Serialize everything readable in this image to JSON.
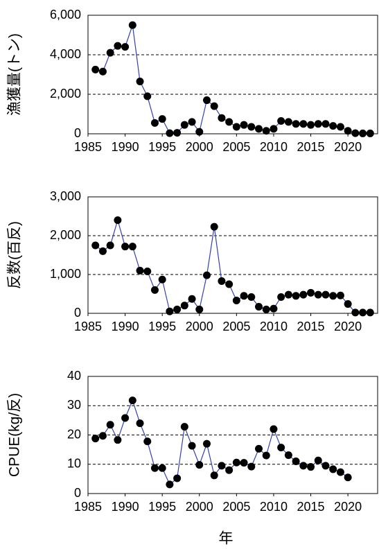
{
  "chart_data": [
    {
      "type": "line",
      "ylabel": "漁獲量(トン)",
      "color": "#3340b0",
      "marker_color": "#000000",
      "grid": true,
      "x": [
        1986,
        1987,
        1988,
        1989,
        1990,
        1991,
        1992,
        1993,
        1994,
        1995,
        1996,
        1997,
        1998,
        1999,
        2000,
        2001,
        2002,
        2003,
        2004,
        2005,
        2006,
        2007,
        2008,
        2009,
        2010,
        2011,
        2012,
        2013,
        2014,
        2015,
        2016,
        2017,
        2018,
        2019,
        2020,
        2021,
        2022,
        2023
      ],
      "values": [
        3250,
        3150,
        4100,
        4450,
        4400,
        5500,
        2650,
        1900,
        550,
        750,
        30,
        50,
        450,
        600,
        100,
        1700,
        1400,
        800,
        600,
        350,
        450,
        350,
        250,
        150,
        250,
        650,
        600,
        500,
        500,
        450,
        500,
        500,
        400,
        350,
        150,
        30,
        20,
        20
      ],
      "xlim": [
        1985,
        2024
      ],
      "xticks": [
        1985,
        1990,
        1995,
        2000,
        2005,
        2010,
        2015,
        2020
      ],
      "ylim": [
        0,
        6000
      ],
      "yticks": [
        0,
        {
          "value": 2000,
          "label": "2,000"
        },
        {
          "value": 4000,
          "label": "4,000"
        },
        {
          "value": 6000,
          "label": "6,000"
        }
      ]
    },
    {
      "type": "line",
      "ylabel": "反数(百反)",
      "color": "#3340b0",
      "marker_color": "#000000",
      "grid": true,
      "x": [
        1986,
        1987,
        1988,
        1989,
        1990,
        1991,
        1992,
        1993,
        1994,
        1995,
        1996,
        1997,
        1998,
        1999,
        2000,
        2001,
        2002,
        2003,
        2004,
        2005,
        2006,
        2007,
        2008,
        2009,
        2010,
        2011,
        2012,
        2013,
        2014,
        2015,
        2016,
        2017,
        2018,
        2019,
        2020,
        2021,
        2022,
        2023
      ],
      "values": [
        1750,
        1600,
        1750,
        2400,
        1720,
        1720,
        1100,
        1080,
        600,
        870,
        50,
        100,
        200,
        370,
        100,
        980,
        2230,
        830,
        750,
        330,
        450,
        420,
        170,
        100,
        120,
        420,
        480,
        450,
        480,
        530,
        480,
        480,
        450,
        460,
        240,
        20,
        20,
        20
      ],
      "xlim": [
        1985,
        2024
      ],
      "xticks": [
        1985,
        1990,
        1995,
        2000,
        2005,
        2010,
        2015,
        2020
      ],
      "ylim": [
        0,
        3000
      ],
      "yticks": [
        0,
        {
          "value": 1000,
          "label": "1,000"
        },
        {
          "value": 2000,
          "label": "2,000"
        },
        {
          "value": 3000,
          "label": "3,000"
        }
      ]
    },
    {
      "type": "line",
      "ylabel": "CPUE(kg/反)",
      "xlabel": "年",
      "color": "#3340b0",
      "marker_color": "#000000",
      "grid": true,
      "x": [
        1986,
        1987,
        1988,
        1989,
        1990,
        1991,
        1992,
        1993,
        1994,
        1995,
        1996,
        1997,
        1998,
        1999,
        2000,
        2001,
        2002,
        2003,
        2004,
        2005,
        2006,
        2007,
        2008,
        2009,
        2010,
        2011,
        2012,
        2013,
        2014,
        2015,
        2016,
        2017,
        2018,
        2019,
        2020
      ],
      "values": [
        18.8,
        19.7,
        23.5,
        18.3,
        25.8,
        31.8,
        24,
        17.8,
        8.7,
        8.7,
        3.1,
        5.2,
        22.8,
        16.3,
        9.8,
        17,
        6.2,
        9.5,
        8,
        10.6,
        10.5,
        9.2,
        15.3,
        13,
        22,
        15.7,
        13.1,
        11,
        9.5,
        9.1,
        11.3,
        9.5,
        8.3,
        7.3,
        5.5
      ],
      "xlim": [
        1985,
        2024
      ],
      "xticks": [
        1985,
        1990,
        1995,
        2000,
        2005,
        2010,
        2015,
        2020
      ],
      "ylim": [
        0,
        40
      ],
      "yticks": [
        0,
        10,
        20,
        30,
        40
      ]
    }
  ]
}
